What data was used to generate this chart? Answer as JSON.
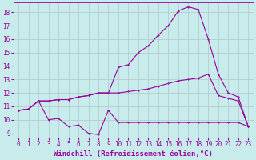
{
  "xlabel": "Windchill (Refroidissement éolien,°C)",
  "background_color": "#c8ecec",
  "line_color": "#990099",
  "grid_color": "#b0c8c8",
  "xlim": [
    -0.5,
    23.5
  ],
  "ylim": [
    8.7,
    18.7
  ],
  "xticks": [
    0,
    1,
    2,
    3,
    4,
    5,
    6,
    7,
    8,
    9,
    10,
    11,
    12,
    13,
    14,
    15,
    16,
    17,
    18,
    19,
    20,
    21,
    22,
    23
  ],
  "yticks": [
    9,
    10,
    11,
    12,
    13,
    14,
    15,
    16,
    17,
    18
  ],
  "line1_x": [
    0,
    1,
    2,
    3,
    4,
    5,
    6,
    7,
    8,
    9,
    10,
    11,
    12,
    13,
    14,
    15,
    16,
    17,
    18,
    19,
    20,
    21,
    22,
    23
  ],
  "line1_y": [
    10.7,
    10.8,
    11.4,
    10.0,
    10.1,
    9.5,
    9.6,
    9.0,
    8.9,
    10.7,
    9.8,
    9.8,
    9.8,
    9.8,
    9.8,
    9.8,
    9.8,
    9.8,
    9.8,
    9.8,
    9.8,
    9.8,
    9.8,
    9.5
  ],
  "line2_x": [
    0,
    1,
    2,
    3,
    4,
    5,
    6,
    7,
    8,
    9,
    10,
    11,
    12,
    13,
    14,
    15,
    16,
    17,
    18,
    19,
    20,
    21,
    22,
    23
  ],
  "line2_y": [
    10.7,
    10.8,
    11.4,
    11.4,
    11.5,
    11.5,
    11.7,
    11.8,
    12.0,
    12.0,
    12.0,
    12.1,
    12.2,
    12.3,
    12.5,
    12.7,
    12.9,
    13.0,
    13.1,
    13.4,
    11.8,
    11.6,
    11.4,
    9.5
  ],
  "line3_x": [
    0,
    1,
    2,
    3,
    4,
    5,
    6,
    7,
    8,
    9,
    10,
    11,
    12,
    13,
    14,
    15,
    16,
    17,
    18,
    19,
    20,
    21,
    22,
    23
  ],
  "line3_y": [
    10.7,
    10.8,
    11.4,
    11.4,
    11.5,
    11.5,
    11.7,
    11.8,
    12.0,
    12.0,
    13.9,
    14.1,
    15.0,
    15.5,
    16.3,
    17.0,
    18.1,
    18.4,
    18.2,
    16.0,
    13.4,
    12.0,
    11.7,
    9.5
  ],
  "marker_size": 2,
  "line_width": 0.8,
  "font_size_ticks": 5.5,
  "font_size_xlabel": 6.5
}
